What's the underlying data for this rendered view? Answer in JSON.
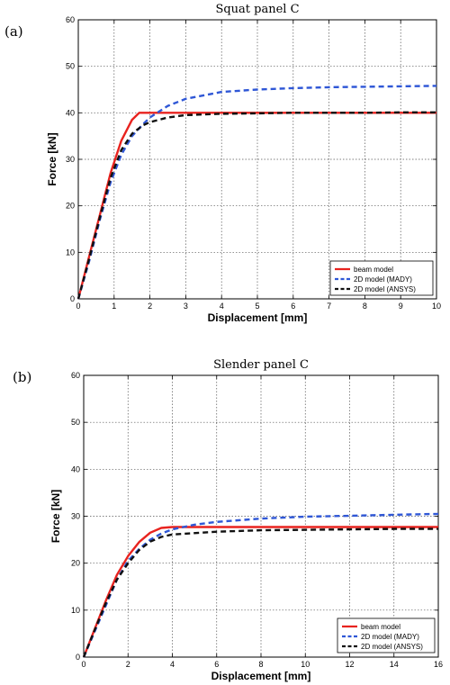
{
  "chart_data": [
    {
      "type": "line",
      "panel_label": "(a)",
      "title": "Squat panel C",
      "xlabel": "Displacement [mm]",
      "ylabel": "Force [kN]",
      "xlim": [
        0,
        10
      ],
      "ylim": [
        0,
        60
      ],
      "xticks": [
        "0",
        "1",
        "2",
        "3",
        "4",
        "5",
        "6",
        "7",
        "8",
        "9",
        "10"
      ],
      "yticks": [
        "0",
        "10",
        "20",
        "30",
        "40",
        "50",
        "60"
      ],
      "grid": true,
      "legend_position": "bottom-right",
      "series": [
        {
          "name": "beam model",
          "color": "#e8231f",
          "dash": "solid",
          "x": [
            0,
            0.3,
            0.6,
            0.9,
            1.2,
            1.5,
            1.7,
            2,
            3,
            4,
            5,
            6,
            7,
            8,
            9,
            10
          ],
          "y": [
            0,
            9,
            18,
            27,
            34,
            38.5,
            40,
            40,
            40,
            40,
            40,
            40,
            40,
            40,
            40,
            40
          ]
        },
        {
          "name": "2D model (MADY)",
          "color": "#2f57d6",
          "dash": "dashed",
          "x": [
            0,
            0.3,
            0.6,
            0.9,
            1.2,
            1.5,
            1.8,
            2,
            2.5,
            3,
            4,
            5,
            6,
            7,
            8,
            9,
            10
          ],
          "y": [
            0,
            8,
            17,
            25,
            31,
            35,
            37.5,
            39,
            41.5,
            43,
            44.5,
            45,
            45.3,
            45.5,
            45.6,
            45.7,
            45.8
          ]
        },
        {
          "name": "2D model (ANSYS)",
          "color": "#111111",
          "dash": "dashed",
          "x": [
            0,
            0.3,
            0.6,
            0.9,
            1.2,
            1.5,
            1.8,
            2,
            2.5,
            3,
            4,
            5,
            6,
            7,
            8,
            9,
            10
          ],
          "y": [
            0,
            8.5,
            17.5,
            26,
            32,
            35.5,
            37.3,
            38,
            39,
            39.5,
            39.8,
            39.9,
            40,
            40,
            40,
            40.1,
            40.1
          ]
        }
      ]
    },
    {
      "type": "line",
      "panel_label": "(b)",
      "title": "Slender panel C",
      "xlabel": "Displacement [mm]",
      "ylabel": "Force [kN]",
      "xlim": [
        0,
        16
      ],
      "ylim": [
        0,
        60
      ],
      "xticks": [
        "0",
        "2",
        "4",
        "6",
        "8",
        "10",
        "12",
        "14",
        "16"
      ],
      "yticks": [
        "0",
        "10",
        "20",
        "30",
        "40",
        "50",
        "60"
      ],
      "grid": true,
      "legend_position": "bottom-right",
      "series": [
        {
          "name": "beam model",
          "color": "#e8231f",
          "dash": "solid",
          "x": [
            0,
            0.5,
            1,
            1.5,
            2,
            2.5,
            3,
            3.5,
            4,
            6,
            8,
            10,
            12,
            14,
            16
          ],
          "y": [
            0,
            6,
            12,
            17.5,
            21.5,
            24.5,
            26.5,
            27.5,
            27.7,
            27.7,
            27.7,
            27.7,
            27.7,
            27.7,
            27.7
          ]
        },
        {
          "name": "2D model (MADY)",
          "color": "#2f57d6",
          "dash": "dashed",
          "x": [
            0,
            0.5,
            1,
            1.5,
            2,
            2.5,
            3,
            3.5,
            4,
            5,
            6,
            8,
            10,
            12,
            14,
            16
          ],
          "y": [
            0,
            5.5,
            11,
            16.5,
            20.5,
            23,
            25,
            26.3,
            27.2,
            28.2,
            28.8,
            29.5,
            29.9,
            30.1,
            30.3,
            30.5
          ]
        },
        {
          "name": "2D model (ANSYS)",
          "color": "#111111",
          "dash": "dashed",
          "x": [
            0,
            0.5,
            1,
            1.5,
            2,
            2.5,
            3,
            3.5,
            4,
            6,
            8,
            10,
            12,
            14,
            16
          ],
          "y": [
            0,
            5.8,
            11.5,
            16.5,
            20,
            22.8,
            24.6,
            25.6,
            26.1,
            26.7,
            27,
            27.1,
            27.2,
            27.3,
            27.3
          ]
        }
      ]
    }
  ]
}
